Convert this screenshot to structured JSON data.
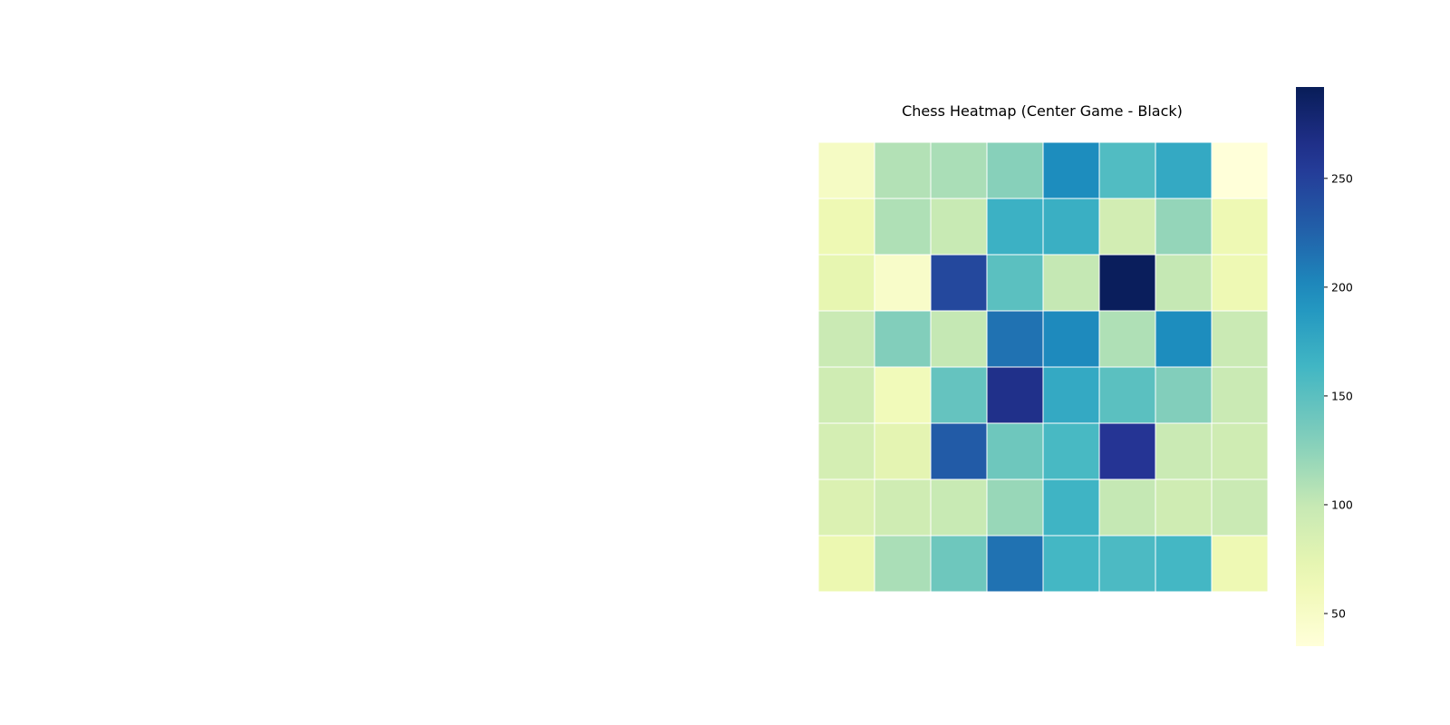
{
  "chart_data": {
    "type": "heatmap",
    "title": "Chess Heatmap (Center Game - Black)",
    "rows": 8,
    "cols": 8,
    "values": [
      [
        52,
        108,
        112,
        128,
        198,
        155,
        175,
        35
      ],
      [
        65,
        110,
        98,
        168,
        170,
        90,
        122,
        65
      ],
      [
        72,
        48,
        245,
        150,
        100,
        290,
        100,
        65
      ],
      [
        97,
        130,
        100,
        215,
        200,
        110,
        198,
        97
      ],
      [
        92,
        60,
        145,
        265,
        175,
        150,
        130,
        97
      ],
      [
        88,
        75,
        230,
        140,
        160,
        260,
        97,
        92
      ],
      [
        82,
        92,
        98,
        120,
        165,
        100,
        92,
        97
      ],
      [
        68,
        112,
        140,
        215,
        162,
        158,
        162,
        65
      ]
    ],
    "colorbar": {
      "colormap": "YlGnBu",
      "vmin": 35,
      "vmax": 292,
      "ticks": [
        50,
        100,
        150,
        200,
        250
      ]
    },
    "xlabel": "",
    "ylabel": "",
    "grid_lines": "white"
  }
}
